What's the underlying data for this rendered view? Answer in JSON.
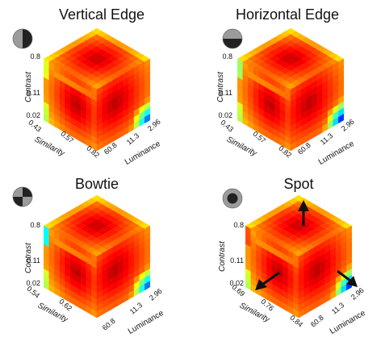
{
  "chart_data": [
    {
      "type": "heatmap",
      "title": "Vertical Edge",
      "stimulus_icon": "vertical-edge-icon",
      "axes": {
        "contrast": {
          "label": "Contrast",
          "ticks": [
            "0.8",
            "0.11",
            "0.02"
          ]
        },
        "similarity": {
          "label": "Similarity",
          "ticks": [
            "0.43",
            "0.57",
            "0.82"
          ]
        },
        "luminance": {
          "label": "Luminance",
          "ticks": [
            "60.8",
            "11.3",
            "2.96"
          ]
        }
      },
      "highlight": {
        "top_ridge": true,
        "hot_spot": "left-face-upper-mid"
      },
      "cold_spots": [
        {
          "face": "right",
          "location": "bottom-right-corner",
          "level": "low"
        }
      ],
      "warm_edges": [
        {
          "face": "left",
          "location": "top-left-corner",
          "level": "yellow-green"
        }
      ]
    },
    {
      "type": "heatmap",
      "title": "Horizontal Edge",
      "stimulus_icon": "horizontal-edge-icon",
      "axes": {
        "contrast": {
          "label": "Contrast",
          "ticks": [
            "0.8",
            "0.11",
            "0.02"
          ]
        },
        "similarity": {
          "label": "Similarity",
          "ticks": [
            "0.43",
            "0.57",
            "0.82"
          ]
        },
        "luminance": {
          "label": "Luminance",
          "ticks": [
            "60.8",
            "11.3",
            "2.96"
          ]
        }
      },
      "highlight": {
        "top_ridge": true,
        "hot_spot": "left-face-upper-mid"
      },
      "cold_spots": [
        {
          "face": "right",
          "location": "bottom-right-corner",
          "level": "lowest"
        }
      ],
      "warm_edges": [
        {
          "face": "left",
          "location": "top-left-corner",
          "level": "green-cyan"
        }
      ]
    },
    {
      "type": "heatmap",
      "title": "Bowtie",
      "stimulus_icon": "bowtie-icon",
      "axes": {
        "contrast": {
          "label": "Contrast",
          "ticks": [
            "0.8",
            "0.11",
            "0.02"
          ]
        },
        "similarity": {
          "label": "Similarity",
          "ticks": [
            "0.54",
            "0.62",
            ""
          ]
        },
        "luminance": {
          "label": "Luminance",
          "ticks": [
            "60.8",
            "11.3",
            "2.96"
          ]
        }
      },
      "highlight": {
        "top_ridge": true,
        "hot_spot": "left-face-upper-mid"
      },
      "cold_spots": [
        {
          "face": "right",
          "location": "bottom-right-corner",
          "level": "low"
        }
      ],
      "warm_edges": [
        {
          "face": "left",
          "location": "top-left-corner",
          "level": "blue-cyan"
        }
      ]
    },
    {
      "type": "heatmap",
      "title": "Spot",
      "stimulus_icon": "spot-icon",
      "axes": {
        "contrast": {
          "label": "Contrast",
          "ticks": [
            "0.8",
            "0.11",
            "0.02"
          ]
        },
        "similarity": {
          "label": "Similarity",
          "ticks": [
            "0.69",
            "0.76",
            "0.84"
          ]
        },
        "luminance": {
          "label": "Luminance",
          "ticks": [
            "60.8",
            "11.3",
            "2.96"
          ]
        }
      },
      "highlight": {
        "top_ridge": true,
        "hot_spot": "center-mid"
      },
      "cold_spots": [
        {
          "face": "right",
          "location": "bottom-right-corner",
          "level": "lowest"
        }
      ],
      "warm_edges": [
        {
          "face": "left",
          "location": "top-left-corner",
          "level": "orange"
        }
      ],
      "arrows": [
        "up-on-top-face",
        "down-left-on-left-face",
        "down-right-on-right-face"
      ]
    }
  ]
}
